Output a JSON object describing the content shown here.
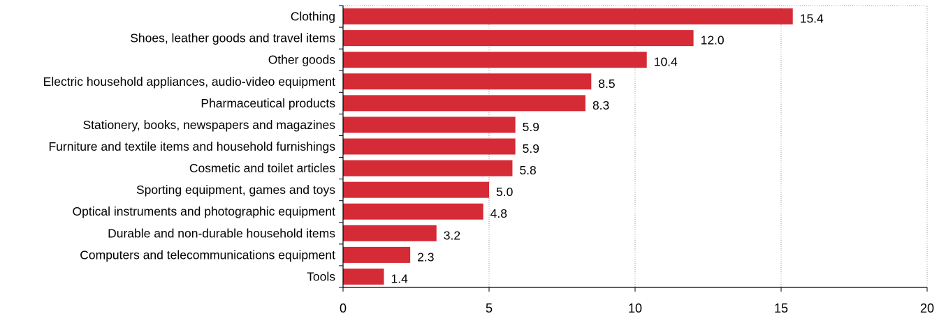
{
  "chart_data": {
    "type": "bar",
    "orientation": "horizontal",
    "categories": [
      "Clothing",
      "Shoes, leather goods and travel items",
      "Other goods",
      "Electric household appliances, audio-video equipment",
      "Pharmaceutical products",
      "Stationery, books, newspapers and magazines",
      "Furniture and textile items and household furnishings",
      "Cosmetic and toilet articles",
      "Sporting equipment, games and toys",
      "Optical instruments and photographic equipment",
      "Durable and non-durable household items",
      "Computers and telecommunications equipment",
      "Tools"
    ],
    "values": [
      15.4,
      12.0,
      10.4,
      8.5,
      8.3,
      5.9,
      5.9,
      5.8,
      5.0,
      4.8,
      3.2,
      2.3,
      1.4
    ],
    "value_labels": [
      "15.4",
      "12.0",
      "10.4",
      "8.5",
      "8.3",
      "5.9",
      "5.9",
      "5.8",
      "5.0",
      "4.8",
      "3.2",
      "2.3",
      "1.4"
    ],
    "x_ticks": [
      0,
      5,
      10,
      15,
      20
    ],
    "xlim": [
      0,
      20
    ],
    "bar_color": "#d52b36",
    "grid": true,
    "legend": "none"
  }
}
